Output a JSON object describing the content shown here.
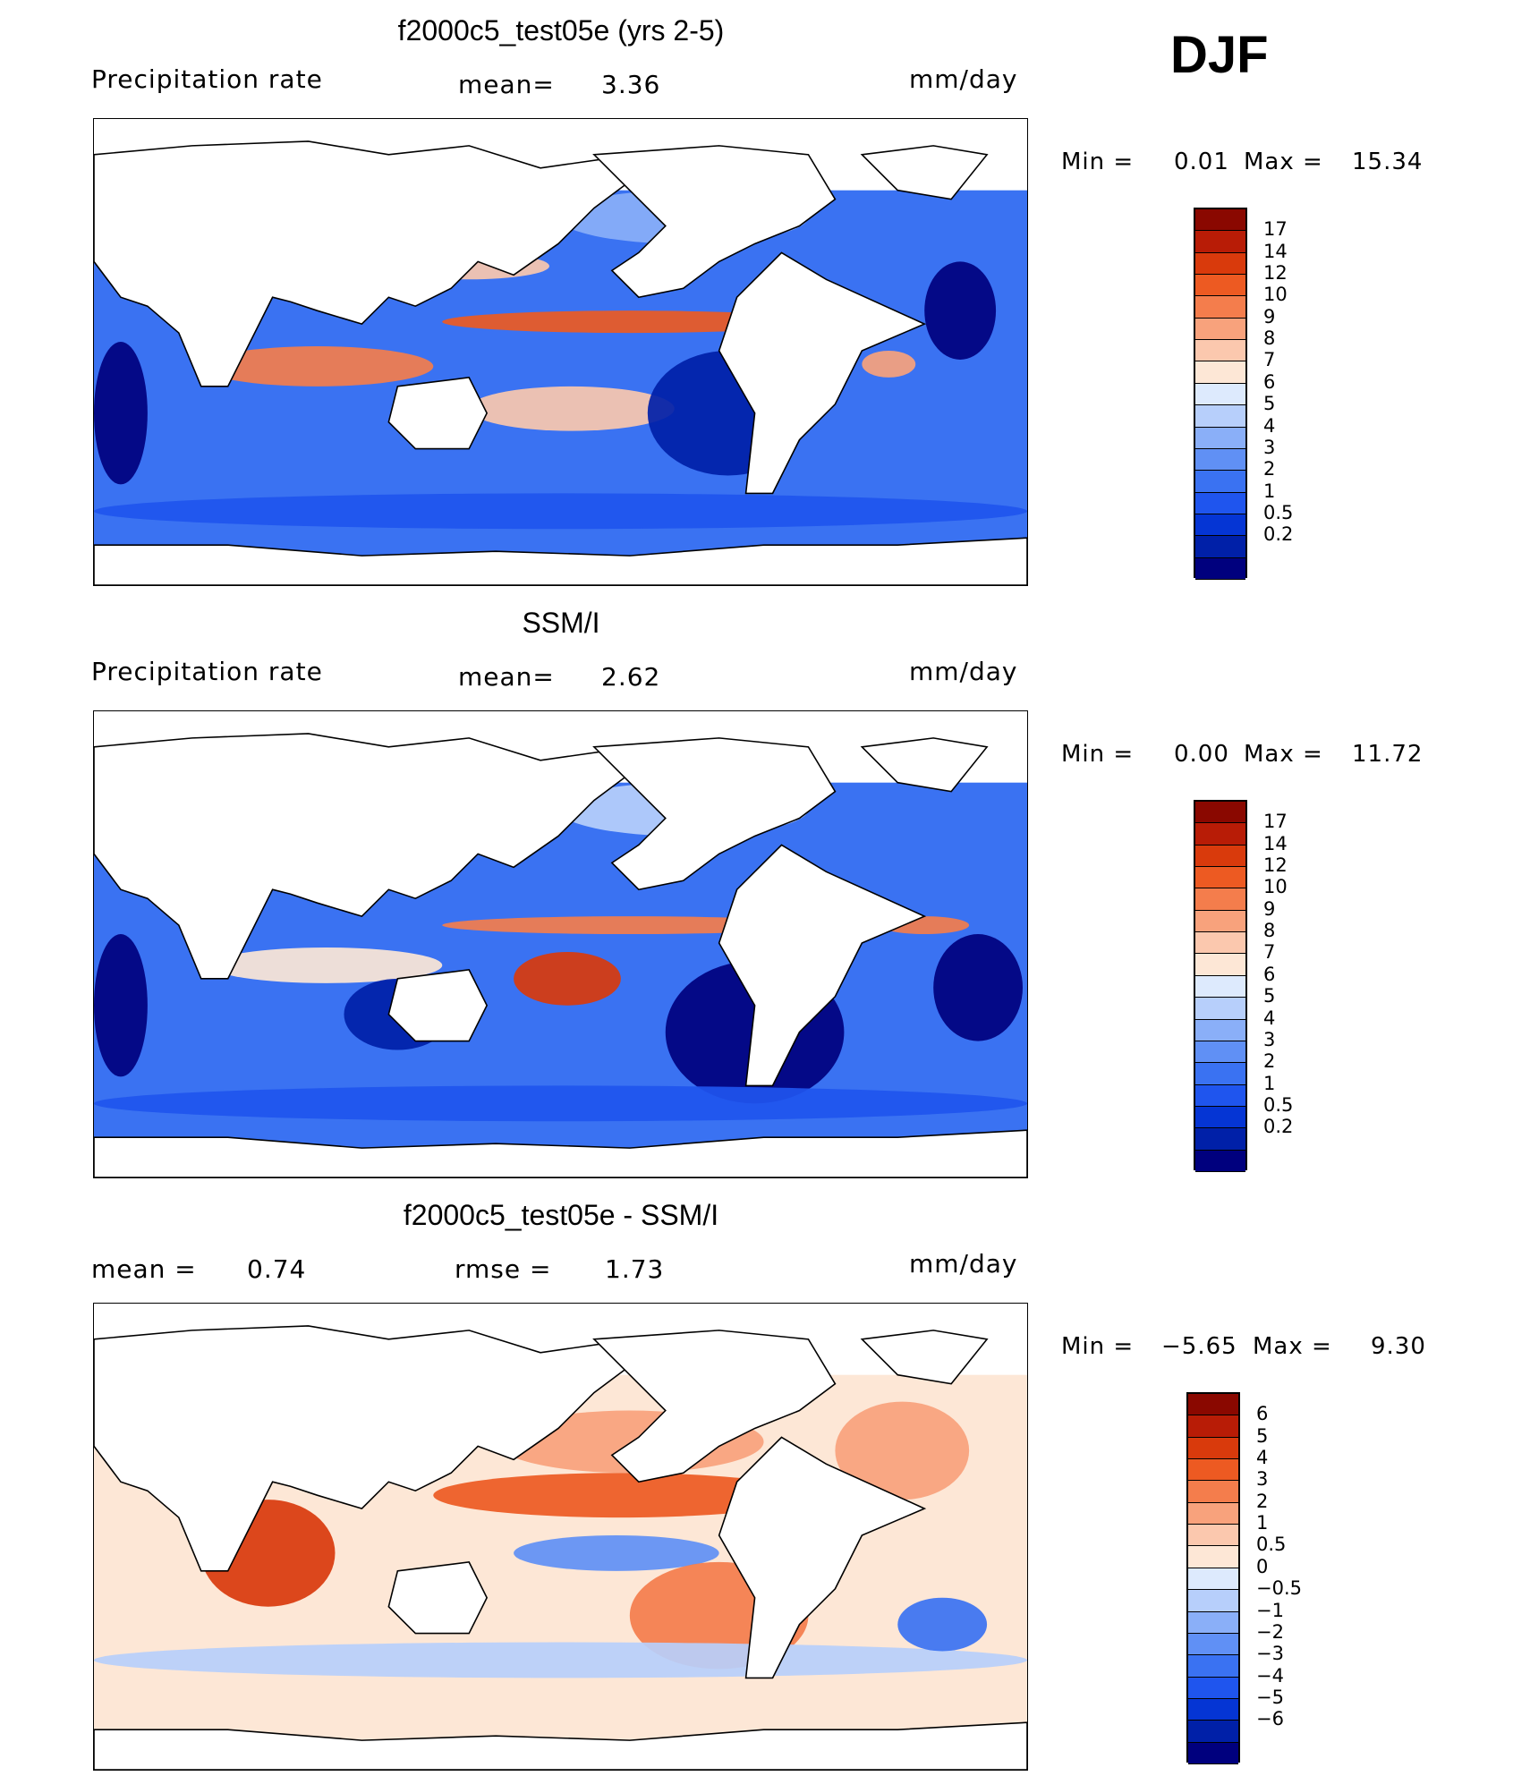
{
  "season_label": "DJF",
  "colors": {
    "precip_scale": [
      "#00007e",
      "#0020a8",
      "#0535d4",
      "#1f55ee",
      "#3a72f2",
      "#6090f5",
      "#8aaff8",
      "#b7cffb",
      "#ddeafd",
      "#fde7d6",
      "#fbc8ae",
      "#f8a27c",
      "#f47d4c",
      "#ed5a22",
      "#d93a0c",
      "#b81c06",
      "#8a0800"
    ],
    "diff_scale": [
      "#00007e",
      "#0020a8",
      "#0535d4",
      "#1f55ee",
      "#3a72f2",
      "#6090f5",
      "#8aaff8",
      "#b7cffb",
      "#ddeafd",
      "#fde7d6",
      "#fbc8ae",
      "#f8a27c",
      "#f47d4c",
      "#ed5a22",
      "#d93a0c",
      "#b81c06",
      "#8a0800"
    ]
  },
  "panels": [
    {
      "title": "f2000c5_test05e (yrs 2-5)",
      "left_label": "Precipitation rate",
      "mean_label": "mean=",
      "mean_value": "3.36",
      "units": "mm/day",
      "min_label": "Min =",
      "min_value": "0.01",
      "max_label": "Max =",
      "max_value": "15.34",
      "colorbar_labels": [
        "17",
        "14",
        "12",
        "10",
        "9",
        "8",
        "7",
        "6",
        "5",
        "4",
        "3",
        "2",
        "1",
        "0.5",
        "0.2"
      ]
    },
    {
      "title": "SSM/I",
      "left_label": "Precipitation rate",
      "mean_label": "mean=",
      "mean_value": "2.62",
      "units": "mm/day",
      "min_label": "Min =",
      "min_value": "0.00",
      "max_label": "Max =",
      "max_value": "11.72",
      "colorbar_labels": [
        "17",
        "14",
        "12",
        "10",
        "9",
        "8",
        "7",
        "6",
        "5",
        "4",
        "3",
        "2",
        "1",
        "0.5",
        "0.2"
      ]
    },
    {
      "title": "f2000c5_test05e - SSM/I",
      "mean_label": "mean =",
      "mean_value": "0.74",
      "rmse_label": "rmse =",
      "rmse_value": "1.73",
      "units": "mm/day",
      "min_label": "Min =",
      "min_value": "−5.65",
      "max_label": "Max =",
      "max_value": "9.30",
      "colorbar_labels": [
        "6",
        "5",
        "4",
        "3",
        "2",
        "1",
        "0.5",
        "0",
        "−0.5",
        "−1",
        "−2",
        "−3",
        "−4",
        "−5",
        "−6"
      ]
    }
  ],
  "chart_data": [
    {
      "type": "heatmap",
      "title": "f2000c5_test05e (yrs 2-5)",
      "variable": "Precipitation rate",
      "units": "mm/day",
      "mean": 3.36,
      "min": 0.01,
      "max": 15.34,
      "contour_levels": [
        0.2,
        0.5,
        1,
        2,
        3,
        4,
        5,
        6,
        7,
        8,
        9,
        10,
        12,
        14,
        17
      ],
      "grid": false
    },
    {
      "type": "heatmap",
      "title": "SSM/I",
      "variable": "Precipitation rate",
      "units": "mm/day",
      "mean": 2.62,
      "min": 0.0,
      "max": 11.72,
      "contour_levels": [
        0.2,
        0.5,
        1,
        2,
        3,
        4,
        5,
        6,
        7,
        8,
        9,
        10,
        12,
        14,
        17
      ],
      "grid": false
    },
    {
      "type": "heatmap",
      "title": "f2000c5_test05e - SSM/I",
      "units": "mm/day",
      "mean": 0.74,
      "rmse": 1.73,
      "min": -5.65,
      "max": 9.3,
      "contour_levels": [
        -6,
        -5,
        -4,
        -3,
        -2,
        -1,
        -0.5,
        0,
        0.5,
        1,
        2,
        3,
        4,
        5,
        6
      ],
      "grid": false
    }
  ]
}
